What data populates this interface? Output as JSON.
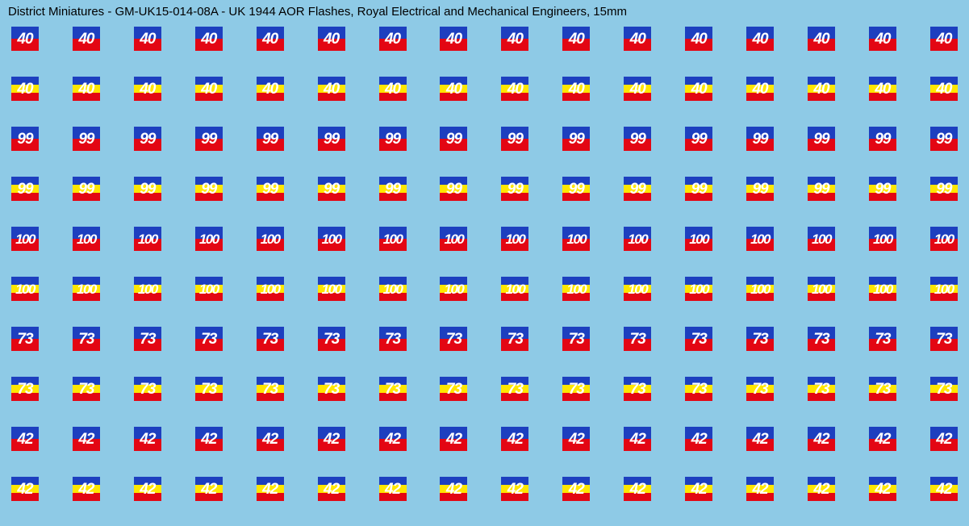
{
  "title": "District Miniatures - GM-UK15-014-08A - UK 1944 AOR Flashes, Royal Electrical and Mechanical Engineers, 15mm",
  "colors": {
    "background": "#8ecae6",
    "blue": "#1d3fbf",
    "yellow": "#ffe600",
    "red": "#e30613",
    "text": "#ffffff"
  },
  "columns_per_row": 16,
  "rows": [
    {
      "number": "40",
      "stripes": [
        "blue",
        "red"
      ]
    },
    {
      "number": "40",
      "stripes": [
        "blue",
        "yellow",
        "red"
      ]
    },
    {
      "number": "99",
      "stripes": [
        "blue",
        "red"
      ]
    },
    {
      "number": "99",
      "stripes": [
        "blue",
        "yellow",
        "red"
      ]
    },
    {
      "number": "100",
      "stripes": [
        "blue",
        "red"
      ]
    },
    {
      "number": "100",
      "stripes": [
        "blue",
        "yellow",
        "red"
      ]
    },
    {
      "number": "73",
      "stripes": [
        "blue",
        "red"
      ]
    },
    {
      "number": "73",
      "stripes": [
        "blue",
        "yellow",
        "red"
      ]
    },
    {
      "number": "42",
      "stripes": [
        "blue",
        "red"
      ]
    },
    {
      "number": "42",
      "stripes": [
        "blue",
        "yellow",
        "red"
      ]
    }
  ]
}
